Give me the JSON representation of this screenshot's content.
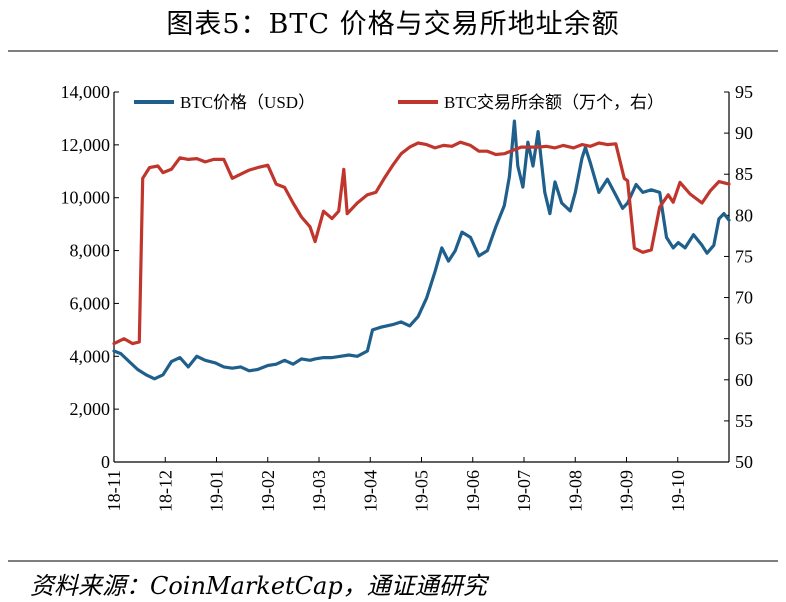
{
  "title": "图表5：BTC 价格与交易所地址余额",
  "source": "资料来源：CoinMarketCap，通证通研究",
  "chart_data": {
    "type": "line",
    "title": "图表5：BTC 价格与交易所地址余额",
    "legend_position": "top",
    "grid": false,
    "x_tick_labels": [
      "18-11",
      "18-12",
      "19-01",
      "19-02",
      "19-03",
      "19-04",
      "19-05",
      "19-06",
      "19-07",
      "19-08",
      "19-09",
      "19-10"
    ],
    "x_range": [
      "2018-11-01",
      "2019-10-31"
    ],
    "y_left": {
      "range": [
        0,
        14000
      ],
      "ticks": [
        "0",
        "2,000",
        "4,000",
        "6,000",
        "8,000",
        "10,000",
        "12,000",
        "14,000"
      ]
    },
    "y_right": {
      "range": [
        50,
        95
      ],
      "ticks": [
        "50",
        "55",
        "60",
        "65",
        "70",
        "75",
        "80",
        "85",
        "90",
        "95"
      ]
    },
    "series": [
      {
        "name": "BTC价格（USD）",
        "axis": "left",
        "color": "#1f5f8b",
        "points": [
          [
            "2018-11-01",
            4200
          ],
          [
            "2018-11-05",
            4100
          ],
          [
            "2018-11-10",
            3800
          ],
          [
            "2018-11-15",
            3500
          ],
          [
            "2018-11-20",
            3300
          ],
          [
            "2018-11-25",
            3150
          ],
          [
            "2018-11-30",
            3300
          ],
          [
            "2018-12-05",
            3800
          ],
          [
            "2018-12-10",
            3950
          ],
          [
            "2018-12-15",
            3600
          ],
          [
            "2018-12-20",
            4000
          ],
          [
            "2018-12-25",
            3850
          ],
          [
            "2018-12-31",
            3750
          ],
          [
            "2019-01-05",
            3600
          ],
          [
            "2019-01-10",
            3550
          ],
          [
            "2019-01-15",
            3600
          ],
          [
            "2019-01-20",
            3450
          ],
          [
            "2019-01-25",
            3500
          ],
          [
            "2019-01-31",
            3650
          ],
          [
            "2019-02-05",
            3700
          ],
          [
            "2019-02-10",
            3850
          ],
          [
            "2019-02-15",
            3700
          ],
          [
            "2019-02-20",
            3900
          ],
          [
            "2019-02-25",
            3850
          ],
          [
            "2019-02-28",
            3900
          ],
          [
            "2019-03-05",
            3950
          ],
          [
            "2019-03-10",
            3950
          ],
          [
            "2019-03-15",
            4000
          ],
          [
            "2019-03-20",
            4050
          ],
          [
            "2019-03-25",
            4000
          ],
          [
            "2019-03-31",
            4200
          ],
          [
            "2019-04-03",
            5000
          ],
          [
            "2019-04-08",
            5100
          ],
          [
            "2019-04-15",
            5200
          ],
          [
            "2019-04-20",
            5300
          ],
          [
            "2019-04-25",
            5150
          ],
          [
            "2019-04-30",
            5500
          ],
          [
            "2019-05-05",
            6200
          ],
          [
            "2019-05-10",
            7200
          ],
          [
            "2019-05-14",
            8100
          ],
          [
            "2019-05-18",
            7600
          ],
          [
            "2019-05-22",
            8000
          ],
          [
            "2019-05-26",
            8700
          ],
          [
            "2019-05-31",
            8500
          ],
          [
            "2019-06-05",
            7800
          ],
          [
            "2019-06-10",
            8000
          ],
          [
            "2019-06-15",
            8900
          ],
          [
            "2019-06-20",
            9700
          ],
          [
            "2019-06-23",
            10800
          ],
          [
            "2019-06-26",
            12900
          ],
          [
            "2019-06-28",
            11200
          ],
          [
            "2019-07-01",
            10400
          ],
          [
            "2019-07-04",
            12100
          ],
          [
            "2019-07-07",
            11200
          ],
          [
            "2019-07-10",
            12500
          ],
          [
            "2019-07-14",
            10200
          ],
          [
            "2019-07-17",
            9400
          ],
          [
            "2019-07-20",
            10600
          ],
          [
            "2019-07-24",
            9800
          ],
          [
            "2019-07-29",
            9500
          ],
          [
            "2019-08-01",
            10200
          ],
          [
            "2019-08-05",
            11500
          ],
          [
            "2019-08-07",
            11900
          ],
          [
            "2019-08-10",
            11300
          ],
          [
            "2019-08-15",
            10200
          ],
          [
            "2019-08-20",
            10700
          ],
          [
            "2019-08-25",
            10100
          ],
          [
            "2019-08-29",
            9600
          ],
          [
            "2019-09-01",
            9800
          ],
          [
            "2019-09-06",
            10500
          ],
          [
            "2019-09-10",
            10200
          ],
          [
            "2019-09-15",
            10300
          ],
          [
            "2019-09-20",
            10200
          ],
          [
            "2019-09-24",
            8500
          ],
          [
            "2019-09-28",
            8100
          ],
          [
            "2019-10-01",
            8300
          ],
          [
            "2019-10-05",
            8100
          ],
          [
            "2019-10-10",
            8600
          ],
          [
            "2019-10-15",
            8200
          ],
          [
            "2019-10-18",
            7900
          ],
          [
            "2019-10-22",
            8200
          ],
          [
            "2019-10-25",
            9200
          ],
          [
            "2019-10-28",
            9400
          ],
          [
            "2019-10-31",
            9150
          ]
        ]
      },
      {
        "name": "BTC交易所余额（万个，右）",
        "axis": "right",
        "color": "#c0362c",
        "points": [
          [
            "2018-11-01",
            64.4
          ],
          [
            "2018-11-07",
            65.0
          ],
          [
            "2018-11-12",
            64.4
          ],
          [
            "2018-11-16",
            64.6
          ],
          [
            "2018-11-18",
            84.5
          ],
          [
            "2018-11-22",
            85.8
          ],
          [
            "2018-11-27",
            86.0
          ],
          [
            "2018-11-30",
            85.2
          ],
          [
            "2018-12-05",
            85.6
          ],
          [
            "2018-12-10",
            87.0
          ],
          [
            "2018-12-15",
            86.8
          ],
          [
            "2018-12-20",
            86.9
          ],
          [
            "2018-12-25",
            86.5
          ],
          [
            "2018-12-30",
            86.8
          ],
          [
            "2019-01-05",
            86.8
          ],
          [
            "2019-01-10",
            84.5
          ],
          [
            "2019-01-15",
            85.0
          ],
          [
            "2019-01-20",
            85.5
          ],
          [
            "2019-01-25",
            85.8
          ],
          [
            "2019-01-31",
            86.1
          ],
          [
            "2019-02-05",
            83.8
          ],
          [
            "2019-02-10",
            83.4
          ],
          [
            "2019-02-15",
            81.5
          ],
          [
            "2019-02-20",
            79.8
          ],
          [
            "2019-02-25",
            78.6
          ],
          [
            "2019-02-28",
            76.8
          ],
          [
            "2019-03-05",
            80.5
          ],
          [
            "2019-03-10",
            79.6
          ],
          [
            "2019-03-14",
            80.5
          ],
          [
            "2019-03-17",
            85.6
          ],
          [
            "2019-03-19",
            80.2
          ],
          [
            "2019-03-25",
            81.5
          ],
          [
            "2019-03-31",
            82.5
          ],
          [
            "2019-04-05",
            82.8
          ],
          [
            "2019-04-10",
            84.5
          ],
          [
            "2019-04-15",
            86.1
          ],
          [
            "2019-04-20",
            87.5
          ],
          [
            "2019-04-25",
            88.3
          ],
          [
            "2019-04-30",
            88.8
          ],
          [
            "2019-05-05",
            88.6
          ],
          [
            "2019-05-10",
            88.2
          ],
          [
            "2019-05-15",
            88.5
          ],
          [
            "2019-05-20",
            88.4
          ],
          [
            "2019-05-25",
            88.9
          ],
          [
            "2019-05-31",
            88.5
          ],
          [
            "2019-06-05",
            87.8
          ],
          [
            "2019-06-10",
            87.8
          ],
          [
            "2019-06-15",
            87.4
          ],
          [
            "2019-06-20",
            87.5
          ],
          [
            "2019-06-25",
            87.9
          ],
          [
            "2019-06-30",
            88.3
          ],
          [
            "2019-07-05",
            88.3
          ],
          [
            "2019-07-10",
            88.3
          ],
          [
            "2019-07-15",
            88.4
          ],
          [
            "2019-07-20",
            88.2
          ],
          [
            "2019-07-25",
            88.5
          ],
          [
            "2019-07-31",
            88.2
          ],
          [
            "2019-08-05",
            88.6
          ],
          [
            "2019-08-10",
            88.4
          ],
          [
            "2019-08-15",
            88.8
          ],
          [
            "2019-08-20",
            88.6
          ],
          [
            "2019-08-25",
            88.7
          ],
          [
            "2019-08-30",
            84.5
          ],
          [
            "2019-09-01",
            84.2
          ],
          [
            "2019-09-05",
            76.0
          ],
          [
            "2019-09-10",
            75.5
          ],
          [
            "2019-09-15",
            75.8
          ],
          [
            "2019-09-20",
            81.0
          ],
          [
            "2019-09-25",
            82.5
          ],
          [
            "2019-09-28",
            81.6
          ],
          [
            "2019-10-02",
            84.0
          ],
          [
            "2019-10-08",
            82.6
          ],
          [
            "2019-10-15",
            81.5
          ],
          [
            "2019-10-20",
            83.0
          ],
          [
            "2019-10-25",
            84.1
          ],
          [
            "2019-10-31",
            83.8
          ]
        ]
      }
    ]
  }
}
